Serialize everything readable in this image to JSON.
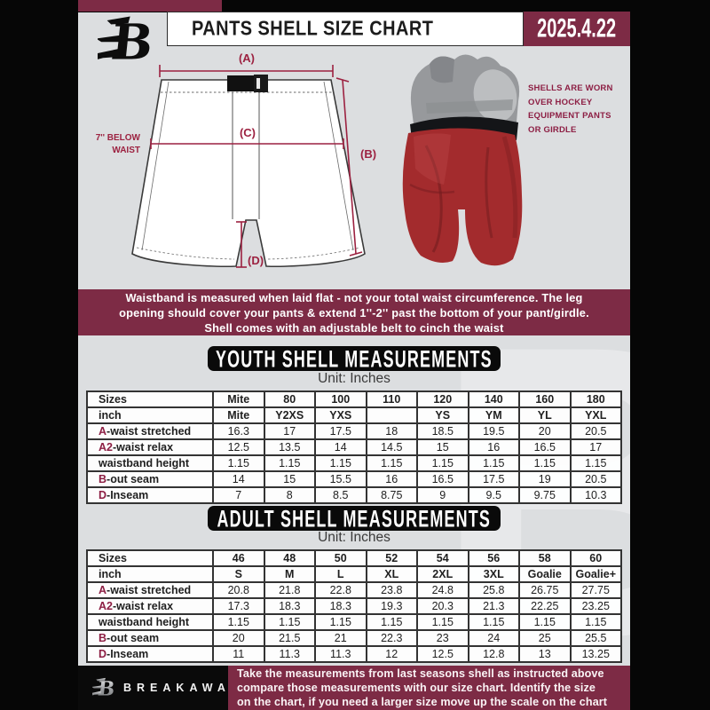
{
  "colors": {
    "maroon_banner": "#7d2b45",
    "maroon_accent": "#9c2140",
    "table_letter_accent": "#8d1f44",
    "background_gray": "#dcdee0",
    "panel_black": "#0a0a0a",
    "shell_red": "#a32b2d"
  },
  "header": {
    "title": "PANTS SHELL SIZE CHART",
    "date": "2025.4.22"
  },
  "diagram": {
    "label_a": "(A)",
    "label_b": "(B)",
    "label_c": "(C)",
    "label_d": "(D)",
    "below_waist_line1": "7'' BELOW",
    "below_waist_line2": "WAIST",
    "side_note_lines": [
      "SHELLS ARE WORN",
      "OVER HOCKEY",
      "EQUIPMENT PANTS",
      "OR GIRDLE"
    ]
  },
  "notice_lines": [
    "Waistband is measured when laid flat - not your total waist circumference. The leg",
    "opening should cover your pants & extend 1''-2'' past the bottom of your pant/girdle.",
    "Shell comes with an adjustable belt to cinch the waist"
  ],
  "sections": {
    "youth": {
      "heading": "YOUTH SHELL MEASUREMENTS",
      "unit": "Unit: Inches",
      "rows": [
        {
          "prefix": "",
          "label": "Sizes",
          "header": true,
          "values": [
            "Mite",
            "80",
            "100",
            "110",
            "120",
            "140",
            "160",
            "180"
          ]
        },
        {
          "prefix": "",
          "label": "inch",
          "header": true,
          "values": [
            "Mite",
            "Y2XS",
            "YXS",
            "",
            "YS",
            "YM",
            "YL",
            "YXL"
          ]
        },
        {
          "prefix": "A",
          "label": "-waist stretched",
          "header": false,
          "values": [
            "16.3",
            "17",
            "17.5",
            "18",
            "18.5",
            "19.5",
            "20",
            "20.5"
          ]
        },
        {
          "prefix": "A2",
          "label": "-waist relax",
          "header": false,
          "values": [
            "12.5",
            "13.5",
            "14",
            "14.5",
            "15",
            "16",
            "16.5",
            "17"
          ]
        },
        {
          "prefix": "",
          "label": "waistband height",
          "header": false,
          "values": [
            "1.15",
            "1.15",
            "1.15",
            "1.15",
            "1.15",
            "1.15",
            "1.15",
            "1.15"
          ]
        },
        {
          "prefix": "B",
          "label": "-out seam",
          "header": false,
          "values": [
            "14",
            "15",
            "15.5",
            "16",
            "16.5",
            "17.5",
            "19",
            "20.5"
          ]
        },
        {
          "prefix": "D",
          "label": "-Inseam",
          "header": false,
          "values": [
            "7",
            "8",
            "8.5",
            "8.75",
            "9",
            "9.5",
            "9.75",
            "10.3"
          ]
        }
      ]
    },
    "adult": {
      "heading": "ADULT SHELL MEASUREMENTS",
      "unit": "Unit: Inches",
      "rows": [
        {
          "prefix": "",
          "label": "Sizes",
          "header": true,
          "values": [
            "46",
            "48",
            "50",
            "52",
            "54",
            "56",
            "58",
            "60"
          ]
        },
        {
          "prefix": "",
          "label": "inch",
          "header": true,
          "values": [
            "S",
            "M",
            "L",
            "XL",
            "2XL",
            "3XL",
            "Goalie",
            "Goalie+"
          ]
        },
        {
          "prefix": "A",
          "label": "-waist stretched",
          "header": false,
          "values": [
            "20.8",
            "21.8",
            "22.8",
            "23.8",
            "24.8",
            "25.8",
            "26.75",
            "27.75"
          ]
        },
        {
          "prefix": "A2",
          "label": "-waist relax",
          "header": false,
          "values": [
            "17.3",
            "18.3",
            "18.3",
            "19.3",
            "20.3",
            "21.3",
            "22.25",
            "23.25"
          ]
        },
        {
          "prefix": "",
          "label": "waistband height",
          "header": false,
          "values": [
            "1.15",
            "1.15",
            "1.15",
            "1.15",
            "1.15",
            "1.15",
            "1.15",
            "1.15"
          ]
        },
        {
          "prefix": "B",
          "label": "-out seam",
          "header": false,
          "values": [
            "20",
            "21.5",
            "21",
            "22.3",
            "23",
            "24",
            "25",
            "25.5"
          ]
        },
        {
          "prefix": "D",
          "label": "-Inseam",
          "header": false,
          "values": [
            "11",
            "11.3",
            "11.3",
            "12",
            "12.5",
            "12.8",
            "13",
            "13.25"
          ]
        }
      ]
    }
  },
  "footer": {
    "brand": "BREAKAWAY",
    "note_lines": [
      "Take the measurements from last seasons shell as instructed above",
      "compare those measurements  with our size chart. Identify the size",
      "on the chart, if you need a larger size move up the scale on the chart"
    ]
  },
  "watermark_letter": "B"
}
